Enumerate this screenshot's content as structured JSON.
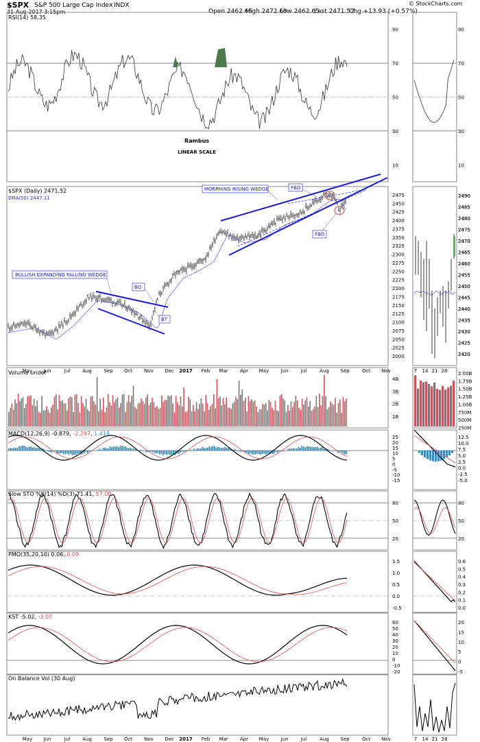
{
  "header": {
    "symbol": "$SPX",
    "name": "S&P 500 Large Cap Index",
    "exchange": "INDX",
    "date": "31-Aug-2017 3:15pm",
    "open": "Open 2462.65",
    "high": "High 2472.69",
    "low": "Low 2462.65",
    "last": "Last 2471.52",
    "chg": "Chg +13.93 (+0.57%)",
    "credit": "© StockCharts.com"
  },
  "colors": {
    "up": "#000000",
    "down": "#d9534f",
    "volume_up": "#777777",
    "volume_down": "#c9545a",
    "macd_hist": "#3a8bb7",
    "trend": "#1a1ad0",
    "ema": "#2a2ae8",
    "zone_fill": "#4a7a4a",
    "annotation": "#1a1ad0",
    "fbo_circle": "#d04040"
  },
  "notes": {
    "author": "Rambus",
    "scale": "LINEAR SCALE"
  },
  "annotations": {
    "bullish_wedge": "BULLISH EXPANDING FALLING WEDGE",
    "rising_wedge": "MORPHING RISING WEDGE",
    "bo": "BO",
    "bt": "BT",
    "fbo_top": "FBO",
    "fbo_bottom": "FBO"
  },
  "x_axis": {
    "months": [
      "May",
      "Jun",
      "Jul",
      "Aug",
      "Sep",
      "Oct",
      "Nov",
      "Dec",
      "2017",
      "Feb",
      "Mar",
      "Apr",
      "May",
      "Jun",
      "Jul",
      "Aug",
      "Sep",
      "Oct",
      "Nov"
    ],
    "zoom_ticks": [
      "7",
      "14",
      "21",
      "28"
    ]
  },
  "chart_data": [
    {
      "type": "line",
      "title": "RSI(14) 58.35",
      "label": "RSI(14) 58.35",
      "ylim": [
        0,
        100
      ],
      "yticks": [
        "90",
        "70",
        "50",
        "30",
        "10"
      ],
      "last_value": 58.35,
      "overbought": 70,
      "oversold": 30
    },
    {
      "type": "line",
      "title": "$SPX (Daily) 2471.52",
      "legend": [
        "$SPX (Daily) 2471.52",
        "EMA(50) 2447.11"
      ],
      "ylim": [
        2000,
        2490
      ],
      "yticks": [
        "2475",
        "2450",
        "2425",
        "2400",
        "2375",
        "2350",
        "2325",
        "2300",
        "2275",
        "2250",
        "2225",
        "2200",
        "2175",
        "2150",
        "2125",
        "2100",
        "2075",
        "2050",
        "2025",
        "2000"
      ],
      "zoom_yticks": [
        "2490",
        "2485",
        "2480",
        "2475",
        "2470",
        "2465",
        "2460",
        "2455",
        "2450",
        "2445",
        "2440",
        "2435",
        "2430",
        "2425",
        "2420"
      ],
      "last_value": 2471.52,
      "ema50": 2447.11
    },
    {
      "type": "bar",
      "title": "Volume undef",
      "label": "Volume undef",
      "yticks": [
        "4B",
        "3B",
        "2B",
        "1B"
      ],
      "zoom_yticks": [
        "2.00B",
        "1.75B",
        "1.50B",
        "1.25B",
        "1.00B",
        "750M",
        "500M",
        "250M"
      ]
    },
    {
      "type": "line",
      "title": "MACD(12,26,9)",
      "legend": [
        "MACD(12,26,9)",
        "-0.879",
        "-2.297",
        "1.418"
      ],
      "yticks": [
        "25",
        "20",
        "15",
        "10",
        "5",
        "0",
        "-5",
        "-10",
        "-15"
      ],
      "zoom_yticks": [
        "12.5",
        "10.0",
        "7.5",
        "5.0",
        "2.5",
        "0.0",
        "-2.5",
        "-5.0"
      ]
    },
    {
      "type": "line",
      "title": "Slow STO %K(14) %D(3)",
      "legend": [
        "Slow STO %K(14) %D(3)",
        "71.41",
        "57.00"
      ],
      "yticks": [
        "80",
        "50",
        "20"
      ],
      "zoom_yticks": [
        "80",
        "50",
        "20"
      ]
    },
    {
      "type": "line",
      "title": "PMO(35,20,10)",
      "legend": [
        "PMO(35,20,10) 0.06",
        "0.09"
      ],
      "yticks": [
        "1.5",
        "1.0",
        "0.5",
        "0.0",
        "-0.5"
      ],
      "zoom_yticks": [
        "0.6",
        "0.5",
        "0.4",
        "0.3",
        "0.2",
        "0.1",
        "0.0"
      ]
    },
    {
      "type": "line",
      "title": "KST",
      "legend": [
        "KST -5.02",
        "-3.07"
      ],
      "yticks": [
        "60",
        "50",
        "40",
        "30",
        "20",
        "10",
        "0",
        "-10",
        "-20"
      ],
      "zoom_yticks": [
        "20",
        "15",
        "10",
        "5",
        "0",
        "-5"
      ]
    },
    {
      "type": "line",
      "title": "On Balance Vol (30 Aug)",
      "label": "On Balance Vol (30 Aug)"
    }
  ]
}
